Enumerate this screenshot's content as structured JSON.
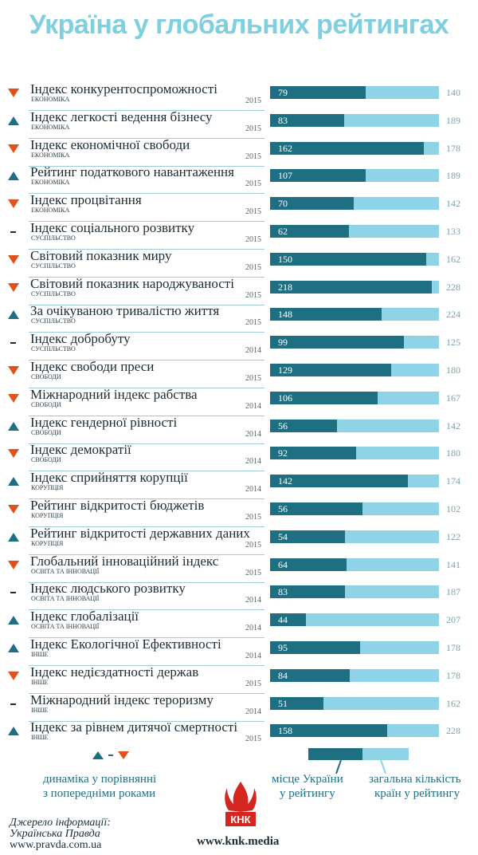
{
  "title": "Україна у глобальних рейтингах",
  "chart_data": {
    "type": "bar",
    "title": "Україна у глобальних рейтингах",
    "series": [
      {
        "name": "місце України у рейтингу",
        "color": "#1f6f82"
      },
      {
        "name": "загальна кількість країн у рейтингу",
        "color": "#8fd3e6"
      }
    ],
    "rows": [
      {
        "name": "Індекс конкурентоспроможності",
        "category": "ЕКОНОМІКА",
        "year": "2015",
        "trend": "down",
        "rank": 79,
        "total": 140
      },
      {
        "name": "Індекс легкості ведення бізнесу",
        "category": "ЕКОНОМІКА",
        "year": "2015",
        "trend": "up",
        "rank": 83,
        "total": 189
      },
      {
        "name": "Індекс економічної свободи",
        "category": "ЕКОНОМІКА",
        "year": "2015",
        "trend": "down",
        "rank": 162,
        "total": 178
      },
      {
        "name": "Рейтинг податкового навантаження",
        "category": "ЕКОНОМІКА",
        "year": "2015",
        "trend": "up",
        "rank": 107,
        "total": 189
      },
      {
        "name": "Індекс процвітання",
        "category": "ЕКОНОМІКА",
        "year": "2015",
        "trend": "down",
        "rank": 70,
        "total": 142
      },
      {
        "name": "Індекс соціального розвитку",
        "category": "СУСПІЛЬСТВО",
        "year": "2015",
        "trend": "same",
        "rank": 62,
        "total": 133
      },
      {
        "name": "Світовий показник миру",
        "category": "СУСПІЛЬСТВО",
        "year": "2015",
        "trend": "down",
        "rank": 150,
        "total": 162
      },
      {
        "name": "Світовий показник народжуваності",
        "category": "СУСПІЛЬСТВО",
        "year": "2015",
        "trend": "down",
        "rank": 218,
        "total": 228
      },
      {
        "name": "За очікуваною тривалістю життя",
        "category": "СУСПІЛЬСТВО",
        "year": "2015",
        "trend": "up",
        "rank": 148,
        "total": 224
      },
      {
        "name": "Індекс добробуту",
        "category": "СУСПІЛЬСТВО",
        "year": "2014",
        "trend": "same",
        "rank": 99,
        "total": 125
      },
      {
        "name": "Індекс свободи преси",
        "category": "СВОБОДИ",
        "year": "2015",
        "trend": "down",
        "rank": 129,
        "total": 180
      },
      {
        "name": "Міжнародний індекс рабства",
        "category": "СВОБОДИ",
        "year": "2014",
        "trend": "down",
        "rank": 106,
        "total": 167
      },
      {
        "name": "Індекс гендерної рівності",
        "category": "СВОБОДИ",
        "year": "2014",
        "trend": "up",
        "rank": 56,
        "total": 142
      },
      {
        "name": "Індекс демократії",
        "category": "СВОБОДИ",
        "year": "2014",
        "trend": "down",
        "rank": 92,
        "total": 180
      },
      {
        "name": "Індекс сприйняття корупції",
        "category": "КОРУПЦІЯ",
        "year": "2014",
        "trend": "up",
        "rank": 142,
        "total": 174
      },
      {
        "name": "Рейтинг відкритості бюджетів",
        "category": "КОРУПЦІЯ",
        "year": "2015",
        "trend": "down",
        "rank": 56,
        "total": 102
      },
      {
        "name": "Рейтинг відкритості державних даних",
        "category": "КОРУПЦІЯ",
        "year": "2015",
        "trend": "up",
        "rank": 54,
        "total": 122
      },
      {
        "name": "Глобальний інноваційний індекс",
        "category": "ОСВІТА ТА ІННОВАЦІЇ",
        "year": "2015",
        "trend": "down",
        "rank": 64,
        "total": 141
      },
      {
        "name": "Індекс людського розвитку",
        "category": "ОСВІТА ТА ІННОВАЦІЇ",
        "year": "2014",
        "trend": "same",
        "rank": 83,
        "total": 187
      },
      {
        "name": "Індекс глобалізації",
        "category": "ОСВІТА ТА ІННОВАЦІЇ",
        "year": "2014",
        "trend": "up",
        "rank": 44,
        "total": 207
      },
      {
        "name": "Індекс Екологічної Ефективності",
        "category": "ІНШЕ",
        "year": "2014",
        "trend": "up",
        "rank": 95,
        "total": 178
      },
      {
        "name": "Індекс недієздатності держав",
        "category": "ІНШЕ",
        "year": "2015",
        "trend": "down",
        "rank": 84,
        "total": 178
      },
      {
        "name": "Міжнародний індекс тероризму",
        "category": "ІНШЕ",
        "year": "2014",
        "trend": "same",
        "rank": 51,
        "total": 162
      },
      {
        "name": "Індекс за рівнем дитячої смертності",
        "category": "ІНШЕ",
        "year": "2015",
        "trend": "up",
        "rank": 158,
        "total": 228
      }
    ]
  },
  "legend": {
    "trend_text_1": "динаміка у порівнянні",
    "trend_text_2": "з попередніми роками",
    "rank_text_1": "місце України",
    "rank_text_2": "у рейтингу",
    "total_text_1": "загальна кількість",
    "total_text_2": "країн у рейтингу"
  },
  "footer": {
    "source_1": "Джерело інформації:",
    "source_2": "Українська Правда",
    "source_3": "www.pravda.com.ua",
    "site": "www.knk.media",
    "logo_text": "КНК"
  },
  "colors": {
    "up": "#1f6f82",
    "down": "#e0521c",
    "rank": "#1f6f82",
    "total": "#8fd3e6",
    "title": "#7ecfe0"
  }
}
